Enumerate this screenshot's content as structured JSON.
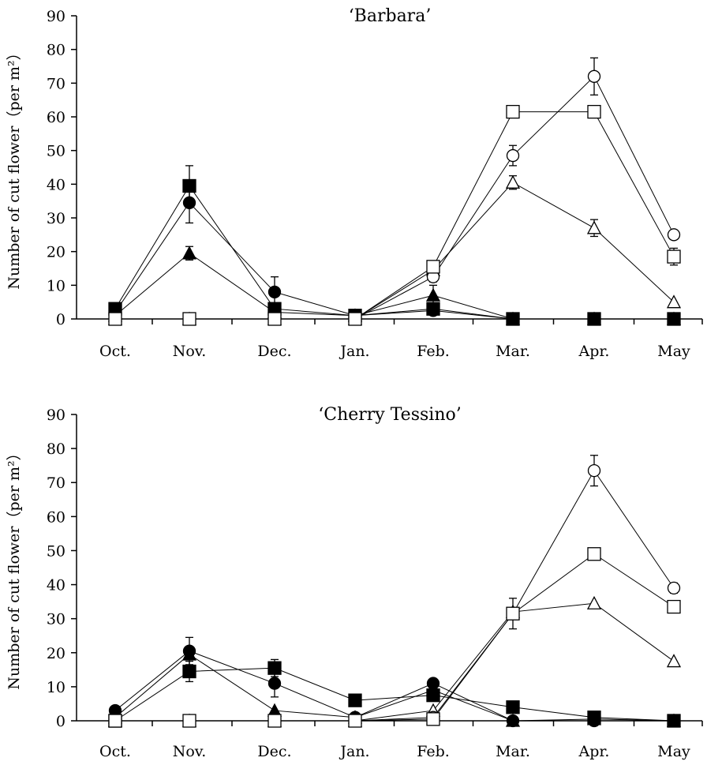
{
  "chart_data": [
    {
      "type": "line",
      "title": "‘Barbara’",
      "ylabel": "Number of cut flower（per m²）",
      "xlabel": "",
      "categories": [
        "Oct.",
        "Nov.",
        "Dec.",
        "Jan.",
        "Feb.",
        "Mar.",
        "Apr.",
        "May"
      ],
      "ylim": [
        0,
        90
      ],
      "yticks": [
        0,
        10,
        20,
        30,
        40,
        50,
        60,
        70,
        80,
        90
      ],
      "series": [
        {
          "marker": "filled-square",
          "values": [
            3,
            39.5,
            3,
            1,
            3,
            0,
            0,
            0
          ],
          "errors": [
            0,
            6,
            0,
            0,
            0,
            0,
            0,
            0
          ]
        },
        {
          "marker": "filled-circle",
          "values": [
            2,
            34.5,
            8,
            1,
            2.5,
            0,
            0,
            0
          ],
          "errors": [
            0,
            6,
            4.5,
            0,
            0,
            0,
            0,
            0
          ]
        },
        {
          "marker": "filled-triangle",
          "values": [
            1,
            19.5,
            2,
            1,
            7,
            0,
            0,
            0
          ],
          "errors": [
            0,
            2,
            0,
            0,
            3,
            0,
            0,
            0
          ]
        },
        {
          "marker": "open-circle",
          "values": [
            0,
            0,
            0,
            0,
            12.5,
            48.5,
            72,
            25
          ],
          "errors": [
            0,
            0,
            0,
            0,
            1.5,
            3,
            5.5,
            0
          ]
        },
        {
          "marker": "open-square",
          "values": [
            0,
            0,
            0,
            0,
            15.5,
            61.5,
            61.5,
            18.5
          ],
          "errors": [
            0,
            0,
            0,
            0,
            0,
            0,
            0,
            2.5
          ]
        },
        {
          "marker": "open-triangle",
          "values": [
            0,
            0,
            0,
            0,
            14.5,
            40.5,
            27,
            5
          ],
          "errors": [
            0,
            0,
            0,
            0,
            0,
            2,
            2.5,
            0
          ]
        }
      ]
    },
    {
      "type": "line",
      "title": "‘Cherry Tessino’",
      "ylabel": "Number of cut flower（per m²）",
      "xlabel": "",
      "categories": [
        "Oct.",
        "Nov.",
        "Dec.",
        "Jan.",
        "Feb.",
        "Mar.",
        "Apr.",
        "May"
      ],
      "ylim": [
        0,
        90
      ],
      "yticks": [
        0,
        10,
        20,
        30,
        40,
        50,
        60,
        70,
        80,
        90
      ],
      "series": [
        {
          "marker": "filled-square",
          "values": [
            0,
            14.5,
            15.5,
            6,
            7.5,
            4,
            1,
            0
          ],
          "errors": [
            0,
            3,
            2.5,
            0,
            0,
            0,
            0,
            0
          ]
        },
        {
          "marker": "filled-circle",
          "values": [
            3,
            20.5,
            11,
            1,
            11,
            0,
            0,
            0
          ],
          "errors": [
            0,
            4,
            4,
            0,
            0,
            0,
            0,
            0
          ]
        },
        {
          "marker": "filled-triangle",
          "values": [
            1,
            19.5,
            3,
            1,
            9,
            0,
            0.5,
            0
          ],
          "errors": [
            0,
            0,
            0,
            0,
            0,
            0,
            0,
            0
          ]
        },
        {
          "marker": "open-circle",
          "values": [
            0,
            0,
            0,
            0,
            1,
            31.5,
            73.5,
            39
          ],
          "errors": [
            0,
            0,
            0,
            0,
            0,
            4.5,
            4.5,
            1.5
          ]
        },
        {
          "marker": "open-square",
          "values": [
            0,
            0,
            0,
            0,
            0.5,
            31.5,
            49,
            33.5
          ],
          "errors": [
            0,
            0,
            0,
            0,
            0,
            0,
            0,
            0
          ]
        },
        {
          "marker": "open-triangle",
          "values": [
            0,
            0,
            0,
            0,
            3,
            32,
            34.5,
            17.5
          ],
          "errors": [
            0,
            0,
            0,
            0,
            0,
            0,
            0,
            0
          ]
        }
      ]
    }
  ]
}
